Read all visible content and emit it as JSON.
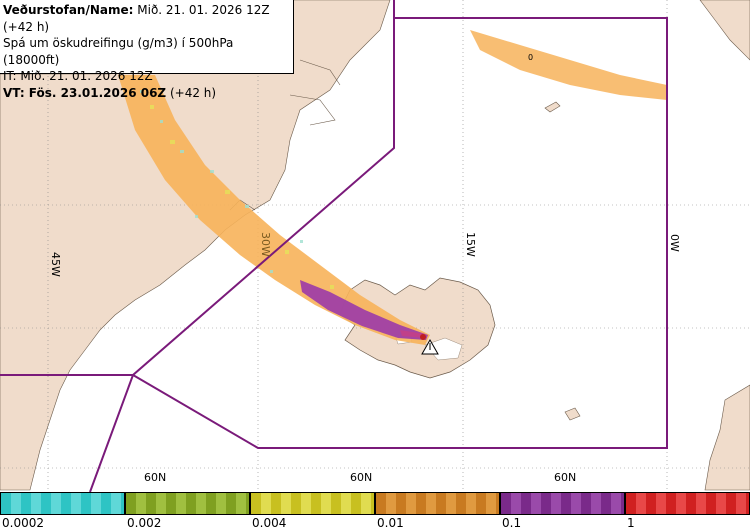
{
  "header": {
    "line1_label": "Veðurstofan/Name:",
    "line1_value": "Mið. 21. 01. 2026 12Z (+42 h)",
    "line2": "Spá um öskudreifingu (g/m3) í 500hPa (18000ft)",
    "line3": "IT: Mið. 21. 01. 2026 12Z",
    "line4_label": "VT: Fös. 23.01.2026 06Z",
    "line4_value": "(+42 h)"
  },
  "map": {
    "longitude_labels": [
      "45W",
      "30W",
      "15W",
      "0W"
    ],
    "latitude_labels": [
      "60N",
      "60N",
      "60N"
    ],
    "contour_label": "0",
    "source_marker": "volcano-marker"
  },
  "legend": {
    "ticks": [
      "0.0002",
      "0.002",
      "0.004",
      "0.01",
      "0.1",
      "1"
    ],
    "colors": [
      "#2ec4c4",
      "#7fa020",
      "#c8c020",
      "#c87a20",
      "#7a2a8a",
      "#d02020"
    ]
  },
  "colors": {
    "land": "#f0dccb",
    "sea": "#ffffff",
    "boundary": "#7a1a7a",
    "ash_low": "#f7b35a",
    "ash_high": "#9b3aa8"
  }
}
